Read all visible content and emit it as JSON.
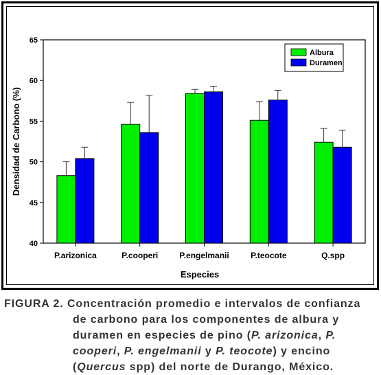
{
  "chart_data": {
    "type": "bar",
    "xlabel": "Especies",
    "ylabel": "Densidad de Carbono (%)",
    "ylim": [
      40,
      65
    ],
    "yticks": [
      40,
      45,
      50,
      55,
      60,
      65
    ],
    "categories": [
      "P.arizonica",
      "P.cooperi",
      "P.engelmanii",
      "P.teocote",
      "Q.spp"
    ],
    "series": [
      {
        "name": "Albura",
        "color": "#00ee00",
        "values": [
          48.3,
          54.6,
          58.4,
          55.1,
          52.4
        ],
        "error": [
          1.7,
          2.7,
          0.5,
          2.3,
          1.7
        ]
      },
      {
        "name": "Duramen",
        "color": "#0000ee",
        "values": [
          50.4,
          53.6,
          58.6,
          57.6,
          51.8
        ],
        "error": [
          1.4,
          4.6,
          0.7,
          1.2,
          2.1
        ]
      }
    ],
    "legend": "top-right",
    "grid": false
  },
  "caption": {
    "label": "FIGURA 2.",
    "lines": [
      " Concentración promedio e intervalos de confianza",
      "de carbono para los componentes de albura y",
      "duramen en especies de pino (",
      "cooperi",
      "Quercus"
    ],
    "segments": {
      "l3a": "duramen en especies de pino (",
      "l3b": "P. arizonica",
      "l3c": ", ",
      "l3d": "P.",
      "l4a": "cooperi",
      "l4b": ", ",
      "l4c": "P. engelmanii",
      "l4d": " y ",
      "l4e": "P. teocote",
      "l4f": ") y encino",
      "l5a": "(",
      "l5b": "Quercus",
      "l5c": " spp) del norte de Durango, México."
    }
  }
}
